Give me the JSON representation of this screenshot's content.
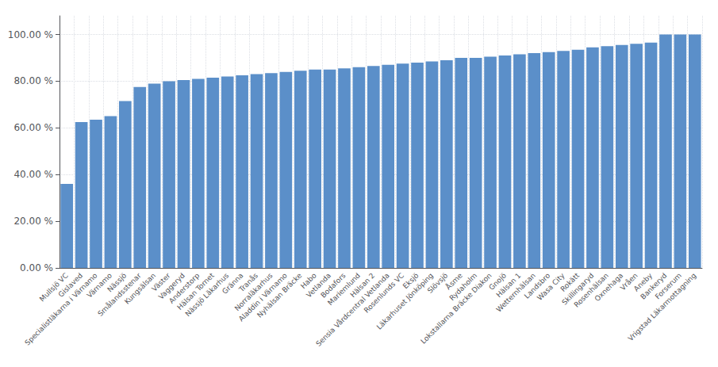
{
  "chart_data": {
    "type": "bar",
    "categories": [
      "Mullsjö VC",
      "Gislaved",
      "Specialistläkarna i Värnamo",
      "Värnamo",
      "Nässjö",
      "Smålandsstenar",
      "Kungsälsan",
      "Väster",
      "Vaggeryd",
      "Anderstorp",
      "Hälsan Tornet",
      "Nässjö Läkarhus",
      "Gränna",
      "Tranås",
      "Norraläkarhus",
      "Aladdin i Värnamo",
      "Nyhälsan Bräcke",
      "Habo",
      "Vetlanda",
      "Bodafors",
      "Mariemlund",
      "Hälsan 2",
      "Sensia Vårdcentral Vetlanda",
      "Rosenlunds VC",
      "Eksjö",
      "Läkarhuset Jönköping",
      "Slövsjö",
      "Åsme",
      "Rydaholm",
      "Lokstallarna Bräcke Diakon",
      "Gnojö",
      "Hälsan 1",
      "Wetternhälsan",
      "Landsbro",
      "Wasa City",
      "Rokätt",
      "Skillingaryd",
      "Rosenhälsan",
      "Oxnehaga",
      "Vråen",
      "Aneby",
      "Bankeryd",
      "Forserum",
      "Vrigstad Läkarmottagning"
    ],
    "values": [
      36.0,
      62.5,
      63.5,
      65.0,
      71.5,
      77.5,
      79.0,
      80.0,
      80.5,
      81.0,
      81.5,
      82.0,
      82.5,
      83.0,
      83.5,
      84.0,
      84.5,
      85.0,
      85.0,
      85.5,
      86.0,
      86.5,
      87.0,
      87.5,
      88.0,
      88.5,
      89.0,
      90.0,
      90.0,
      90.5,
      91.0,
      91.5,
      92.0,
      92.5,
      93.0,
      93.5,
      94.5,
      95.0,
      95.5,
      96.0,
      96.5,
      100.0,
      100.0,
      100.0
    ],
    "color": "#5b8fc9",
    "ylim": [
      0,
      108
    ],
    "yticks": [
      {
        "value": 0,
        "label": "0.00 %"
      },
      {
        "value": 20,
        "label": "20.00 %"
      },
      {
        "value": 40,
        "label": "40.00 %"
      },
      {
        "value": 60,
        "label": "60.00 %"
      },
      {
        "value": 80,
        "label": "80.00 %"
      },
      {
        "value": 100,
        "label": "100.00 %"
      }
    ],
    "grid": true
  }
}
